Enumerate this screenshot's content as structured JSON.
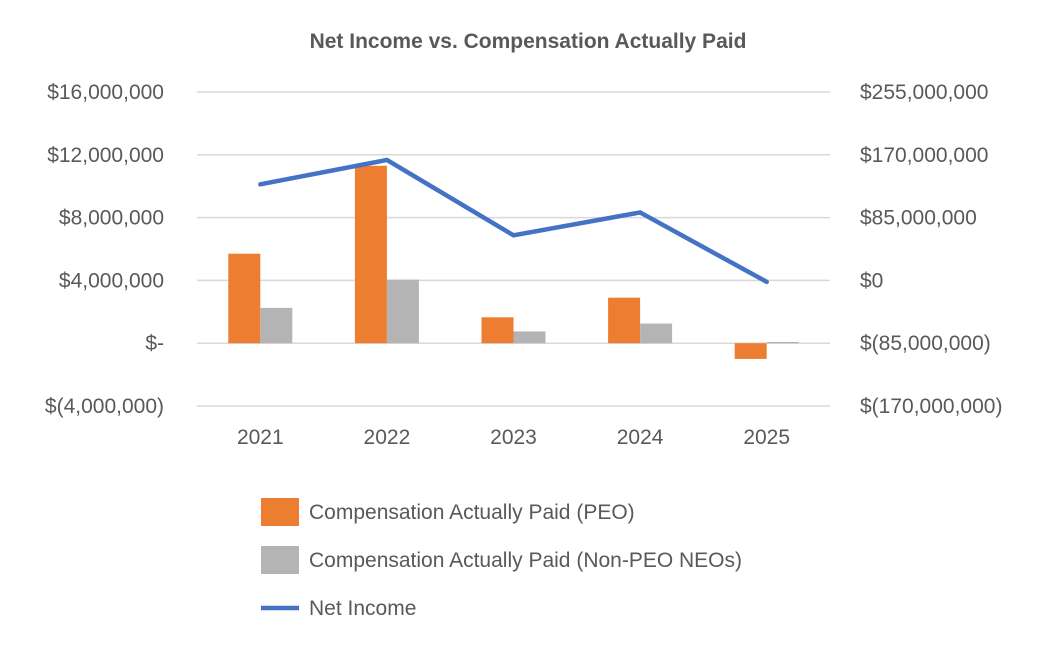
{
  "chart_data": {
    "type": "bar",
    "title": "Net Income vs. Compensation Actually Paid",
    "xlabel": "",
    "ylabel": "",
    "categories": [
      "2021",
      "2022",
      "2023",
      "2024",
      "2025"
    ],
    "y_left": {
      "lim": [
        -4000000,
        16000000
      ],
      "tick_values": [
        -4000000,
        0,
        4000000,
        8000000,
        12000000,
        16000000
      ],
      "tick_labels": [
        "$(4,000,000)",
        "$-",
        "$4,000,000",
        "$8,000,000",
        "$12,000,000",
        "$16,000,000"
      ]
    },
    "y_right": {
      "lim": [
        -170000000,
        255000000
      ],
      "tick_values": [
        -170000000,
        -85000000,
        0,
        85000000,
        170000000,
        255000000
      ],
      "tick_labels": [
        "$(170,000,000)",
        "$(85,000,000)",
        "$0",
        "$85,000,000",
        "$170,000,000",
        "$255,000,000"
      ]
    },
    "series": [
      {
        "name": "Compensation Actually Paid (PEO)",
        "type": "bar",
        "axis": "left",
        "color": "#ed7d31",
        "values": [
          5700000,
          11300000,
          1650000,
          2900000,
          -1000000
        ]
      },
      {
        "name": "Compensation Actually Paid (Non-PEO NEOs)",
        "type": "bar",
        "axis": "left",
        "color": "#b4b4b4",
        "values": [
          2250000,
          4050000,
          750000,
          1250000,
          80000
        ]
      },
      {
        "name": "Net Income",
        "type": "line",
        "axis": "right",
        "color": "#4472c4",
        "values": [
          130000000,
          163000000,
          61000000,
          92000000,
          -2000000
        ]
      }
    ],
    "grid": true,
    "legend_position": "bottom"
  }
}
